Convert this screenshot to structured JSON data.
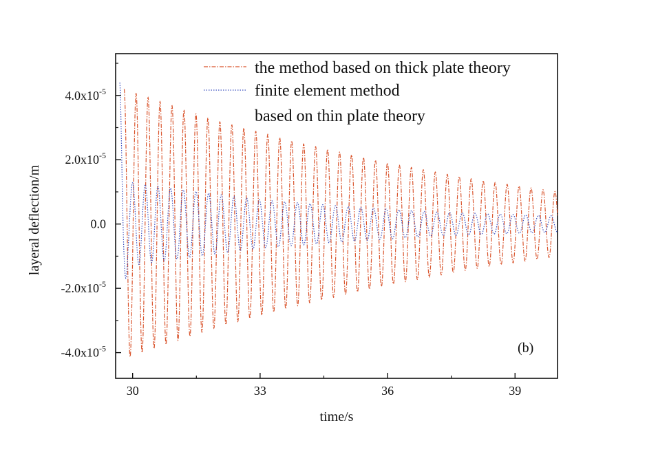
{
  "chart_data": {
    "type": "line",
    "title": "",
    "xlabel": "time/s",
    "ylabel": "layeral deflection/m",
    "xlim": [
      29.6,
      40.0
    ],
    "ylim": [
      -4.8e-05,
      5.3e-05
    ],
    "grid": false,
    "legend_position": "top-right",
    "panel_label": "(b)",
    "x_ticks": [
      {
        "value": 30,
        "label": "30"
      },
      {
        "value": 33,
        "label": "33"
      },
      {
        "value": 36,
        "label": "36"
      },
      {
        "value": 39,
        "label": "39"
      }
    ],
    "y_ticks": [
      {
        "value": 4e-05,
        "mantissa": "4.0x10",
        "exp": "-5"
      },
      {
        "value": 2e-05,
        "mantissa": "2.0x10",
        "exp": "-5"
      },
      {
        "value": 0,
        "mantissa": "0.0",
        "exp": ""
      },
      {
        "value": -2e-05,
        "mantissa": "-2.0x10",
        "exp": "-5"
      },
      {
        "value": -4e-05,
        "mantissa": "-4.0x10",
        "exp": "-5"
      }
    ],
    "series": [
      {
        "name": "the method based on thick plate theory",
        "color": "#d9542c",
        "style": "dash-dot",
        "frequency_hz": 3.55,
        "amplitude_points": [
          [
            29.8,
            4.2e-05
          ],
          [
            30.0,
            4.1e-05
          ],
          [
            32.0,
            3.2e-05
          ],
          [
            34.0,
            2.5e-05
          ],
          [
            36.0,
            1.9e-05
          ],
          [
            38.0,
            1.4e-05
          ],
          [
            40.0,
            1e-05
          ]
        ]
      },
      {
        "name": "finite element method",
        "name_line2": "based on thin plate theory",
        "color": "#3a4fc0",
        "style": "dotted",
        "frequency_hz": 3.35,
        "amplitude_points": [
          [
            29.7,
            4.4e-05
          ],
          [
            29.8,
            2e-05
          ],
          [
            29.9,
            1.3e-05
          ],
          [
            31.0,
            1.1e-05
          ],
          [
            33.0,
            7.5e-06
          ],
          [
            35.0,
            5.5e-06
          ],
          [
            37.0,
            3.8e-06
          ],
          [
            40.0,
            2.5e-06
          ]
        ]
      }
    ]
  }
}
